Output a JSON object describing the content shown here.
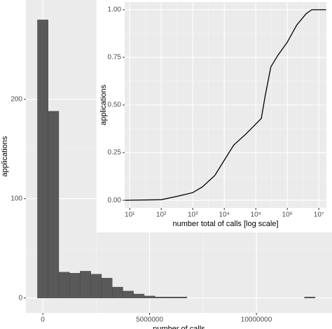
{
  "chart_data": [
    {
      "type": "histogram",
      "xlabel": "number of calls",
      "ylabel": "applications",
      "bins": [
        -250000,
        250000,
        750000,
        1250000,
        1750000,
        2250000,
        2750000,
        3250000,
        3750000,
        4250000,
        4750000,
        5250000,
        5750000,
        6250000,
        6750000,
        7250000,
        7750000,
        8250000,
        8750000,
        9250000,
        9750000,
        10250000,
        10750000,
        11250000,
        11750000,
        12250000,
        12750000,
        13250000
      ],
      "values": [
        280,
        188,
        26,
        25,
        27,
        24,
        20,
        11,
        7,
        4,
        2,
        1,
        1,
        1,
        0,
        0,
        0,
        0,
        0,
        0,
        0,
        0,
        0,
        0,
        0,
        1,
        0
      ],
      "color": "#595959",
      "xlim": [
        -790000,
        13540000
      ],
      "xticks": [
        0,
        5000000,
        10000000
      ],
      "ylim": [
        -15,
        300
      ],
      "yticks": [
        0,
        100,
        200
      ],
      "grid": true
    },
    {
      "type": "line",
      "xlabel": "number total of calls [log scale]",
      "ylabel": "applications",
      "x": [
        7,
        100,
        300,
        1000,
        2000,
        5000,
        10000,
        20000,
        50000,
        100000,
        150000,
        200000,
        300000,
        500000,
        1000000,
        2000000,
        4000000,
        6000000,
        17000000
      ],
      "values": [
        0,
        0.003,
        0.02,
        0.04,
        0.07,
        0.13,
        0.21,
        0.29,
        0.35,
        0.4,
        0.43,
        0.55,
        0.7,
        0.76,
        0.83,
        0.92,
        0.98,
        1.0,
        1.0
      ],
      "color": "#000000",
      "xscale": "log",
      "xlim": [
        6.9,
        17400000
      ],
      "xticks": [
        {
          "value": 10,
          "label": "10¹"
        },
        {
          "value": 100,
          "label": "10²"
        },
        {
          "value": 1000,
          "label": "10³"
        },
        {
          "value": 10000,
          "label": "10⁴"
        },
        {
          "value": 100000,
          "label": "10⁵"
        },
        {
          "value": 1000000,
          "label": "10⁶"
        },
        {
          "value": 10000000,
          "label": "10⁷"
        }
      ],
      "ylim": [
        -0.04,
        1.04
      ],
      "yticks": [
        {
          "value": 0,
          "label": "0.00"
        },
        {
          "value": 0.25,
          "label": "0.25"
        },
        {
          "value": 0.5,
          "label": "0.50"
        },
        {
          "value": 0.75,
          "label": "0.75"
        },
        {
          "value": 1,
          "label": "1.00"
        }
      ],
      "grid": true
    }
  ]
}
